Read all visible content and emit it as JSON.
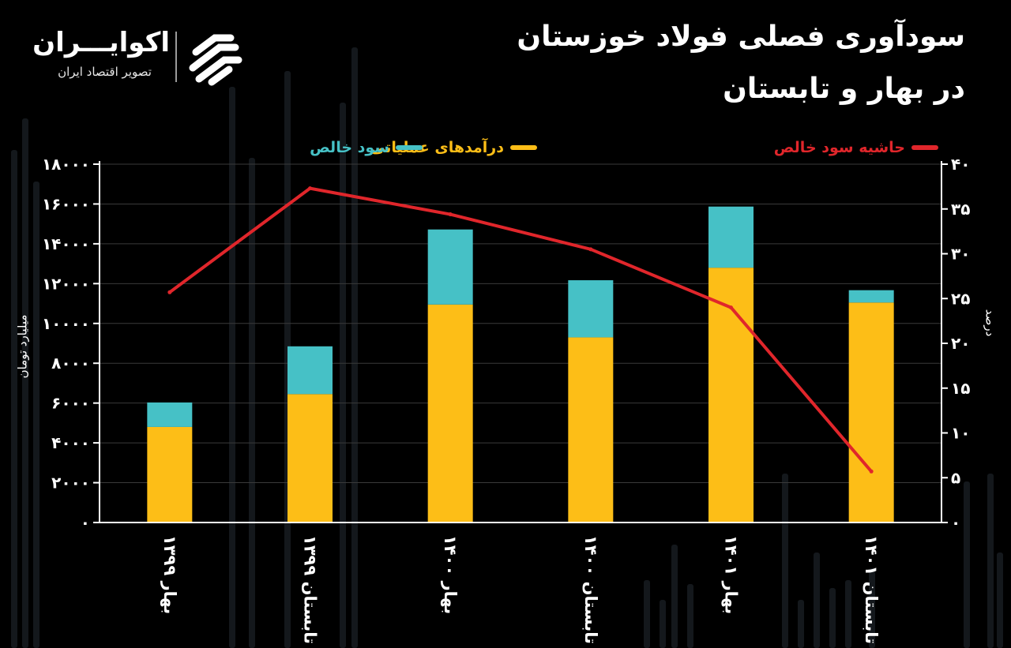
{
  "header": {
    "title_line1": "سودآوری فصلی فولاد خوزستان",
    "title_line2": "در بهار و تابستان"
  },
  "logo": {
    "name": "اکوایـــران",
    "tagline": "تصویر اقتصاد ایران",
    "icon": "ecoiran-stripes-icon"
  },
  "legend": {
    "revenue": "درآمدهای عملیاتی",
    "net_profit": "سود خالص",
    "margin": "حاشیه سود خالص"
  },
  "colors": {
    "revenue": "#FDBE17",
    "net_profit": "#46C1C6",
    "margin": "#E0262B",
    "grid": "#3a3a3a",
    "background": "#000000"
  },
  "chart_data": {
    "type": "bar",
    "stacked": true,
    "categories": [
      "بهار ۱۳۹۹",
      "تابستان ۱۳۹۹",
      "بهار ۱۴۰۰",
      "تابستان ۱۴۰۰",
      "بهار ۱۴۰۱",
      "تابستان ۱۴۰۱"
    ],
    "series": [
      {
        "name": "درآمدهای عملیاتی",
        "type": "bar",
        "axis": "left",
        "values": [
          4800,
          6450,
          10950,
          9300,
          12800,
          11050
        ]
      },
      {
        "name": "سود خالص",
        "type": "bar",
        "axis": "left",
        "values": [
          1230,
          2400,
          3770,
          2870,
          3070,
          620
        ]
      },
      {
        "name": "حاشیه سود خالص",
        "type": "line",
        "axis": "right",
        "values": [
          25.7,
          37.3,
          34.4,
          30.5,
          24,
          5.7
        ]
      }
    ],
    "ylabel": "میلیارد تومان",
    "ylabel_right": "درصد",
    "ylim": [
      0,
      18000
    ],
    "ylim_right": [
      0,
      40
    ],
    "yticks": [
      "۰",
      "۲۰۰۰",
      "۴۰۰۰",
      "۶۰۰۰",
      "۸۰۰۰",
      "۱۰۰۰۰",
      "۱۲۰۰۰",
      "۱۴۰۰۰",
      "۱۶۰۰۰",
      "۱۸۰۰۰"
    ],
    "yticks_right": [
      "۰",
      "۵",
      "۱۰",
      "۱۵",
      "۲۰",
      "۲۵",
      "۳۰",
      "۳۵",
      "۴۰"
    ],
    "grid": true,
    "legend_position": "top"
  }
}
